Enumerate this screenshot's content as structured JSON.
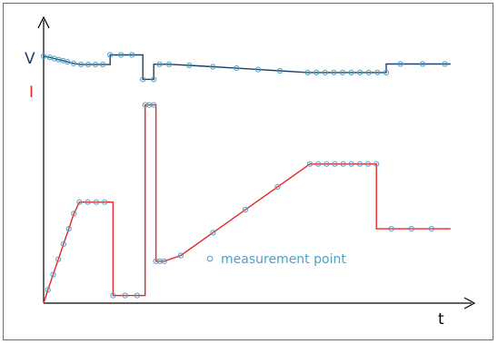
{
  "labels": {
    "v_axis": "V",
    "i_axis": "I",
    "t_axis": "t",
    "legend": "measurement point"
  },
  "colors": {
    "voltage": "#1f3f66",
    "current": "#e8262a",
    "marker": "#4aa3c8",
    "axis": "#000000",
    "v_label": "#1f3f66",
    "i_label": "#e8262a",
    "legend_text": "#4aa3c8"
  },
  "chart_data": {
    "type": "line",
    "series": [
      {
        "id": "voltage",
        "points": [
          [
            0,
            10
          ],
          [
            0.62,
            9.92
          ],
          [
            1.06,
            9.84
          ],
          [
            1.5,
            9.76
          ],
          [
            1.94,
            9.69
          ],
          [
            2.38,
            9.6
          ],
          [
            3.0,
            9.49
          ],
          [
            3.73,
            9.41
          ],
          [
            4.46,
            9.41
          ],
          [
            5.18,
            9.41
          ],
          [
            5.91,
            9.41
          ],
          [
            6.64,
            9.41
          ],
          [
            6.64,
            10.1
          ],
          [
            7.72,
            10.1
          ],
          [
            8.81,
            10.1
          ],
          [
            9.9,
            10.1
          ],
          [
            9.9,
            8.35
          ],
          [
            10.99,
            8.35
          ],
          [
            10.99,
            9.43
          ],
          [
            11.56,
            9.43
          ],
          [
            12.5,
            9.43
          ],
          [
            14.52,
            9.35
          ],
          [
            16.88,
            9.25
          ],
          [
            19.25,
            9.15
          ],
          [
            21.4,
            9.05
          ],
          [
            23.56,
            8.96
          ],
          [
            26.35,
            8.84
          ],
          [
            27.22,
            8.84
          ],
          [
            28.09,
            8.84
          ],
          [
            28.96,
            8.84
          ],
          [
            29.83,
            8.84
          ],
          [
            30.7,
            8.84
          ],
          [
            31.57,
            8.84
          ],
          [
            32.44,
            8.84
          ],
          [
            33.31,
            8.84
          ],
          [
            34.18,
            8.84
          ],
          [
            34.18,
            9.45
          ],
          [
            35.59,
            9.45
          ],
          [
            37.81,
            9.45
          ],
          [
            40.03,
            9.45
          ],
          [
            40.6,
            9.45
          ]
        ],
        "markers": [
          [
            0,
            10
          ],
          [
            0.62,
            9.92
          ],
          [
            1.06,
            9.84
          ],
          [
            1.5,
            9.76
          ],
          [
            1.94,
            9.69
          ],
          [
            2.38,
            9.6
          ],
          [
            3.0,
            9.49
          ],
          [
            3.73,
            9.41
          ],
          [
            4.46,
            9.41
          ],
          [
            5.18,
            9.41
          ],
          [
            5.91,
            9.41
          ],
          [
            6.64,
            10.1
          ],
          [
            7.72,
            10.1
          ],
          [
            8.81,
            10.1
          ],
          [
            9.9,
            8.35
          ],
          [
            10.99,
            8.35
          ],
          [
            11.56,
            9.43
          ],
          [
            12.5,
            9.43
          ],
          [
            14.52,
            9.35
          ],
          [
            16.88,
            9.25
          ],
          [
            19.25,
            9.15
          ],
          [
            21.4,
            9.05
          ],
          [
            23.56,
            8.96
          ],
          [
            26.35,
            8.84
          ],
          [
            27.22,
            8.84
          ],
          [
            28.09,
            8.84
          ],
          [
            28.96,
            8.84
          ],
          [
            29.83,
            8.84
          ],
          [
            30.7,
            8.84
          ],
          [
            31.57,
            8.84
          ],
          [
            32.44,
            8.84
          ],
          [
            33.31,
            8.84
          ],
          [
            34.18,
            8.84
          ],
          [
            35.59,
            9.45
          ],
          [
            37.81,
            9.45
          ],
          [
            40.03,
            9.45
          ]
        ]
      },
      {
        "id": "current",
        "points": [
          [
            0,
            0
          ],
          [
            0.43,
            0.35
          ],
          [
            0.95,
            0.75
          ],
          [
            1.47,
            1.15
          ],
          [
            1.99,
            1.55
          ],
          [
            2.51,
            1.95
          ],
          [
            3.02,
            2.35
          ],
          [
            3.57,
            2.65
          ],
          [
            4.41,
            2.65
          ],
          [
            5.25,
            2.65
          ],
          [
            6.09,
            2.65
          ],
          [
            6.93,
            2.65
          ],
          [
            6.93,
            0.2
          ],
          [
            8.13,
            0.2
          ],
          [
            9.33,
            0.2
          ],
          [
            10.13,
            0.2
          ],
          [
            10.13,
            5.2
          ],
          [
            10.53,
            5.2
          ],
          [
            11.0,
            5.2
          ],
          [
            11.21,
            5.2
          ],
          [
            11.21,
            1.1
          ],
          [
            11.59,
            1.1
          ],
          [
            12.03,
            1.1
          ],
          [
            13.68,
            1.25
          ],
          [
            16.9,
            1.85
          ],
          [
            20.12,
            2.45
          ],
          [
            23.34,
            3.05
          ],
          [
            26.56,
            3.65
          ],
          [
            27.39,
            3.65
          ],
          [
            28.22,
            3.65
          ],
          [
            29.05,
            3.65
          ],
          [
            29.88,
            3.65
          ],
          [
            30.71,
            3.65
          ],
          [
            31.54,
            3.65
          ],
          [
            32.37,
            3.65
          ],
          [
            33.2,
            3.65
          ],
          [
            33.2,
            1.95
          ],
          [
            34.7,
            1.95
          ],
          [
            36.7,
            1.95
          ],
          [
            38.7,
            1.95
          ],
          [
            40.6,
            1.95
          ]
        ],
        "markers": [
          [
            0.43,
            0.35
          ],
          [
            0.95,
            0.75
          ],
          [
            1.47,
            1.15
          ],
          [
            1.99,
            1.55
          ],
          [
            2.51,
            1.95
          ],
          [
            3.02,
            2.35
          ],
          [
            3.57,
            2.65
          ],
          [
            4.41,
            2.65
          ],
          [
            5.25,
            2.65
          ],
          [
            6.09,
            2.65
          ],
          [
            6.93,
            0.2
          ],
          [
            8.13,
            0.2
          ],
          [
            9.33,
            0.2
          ],
          [
            10.13,
            5.2
          ],
          [
            10.53,
            5.2
          ],
          [
            11.0,
            5.2
          ],
          [
            11.21,
            1.1
          ],
          [
            11.59,
            1.1
          ],
          [
            12.03,
            1.1
          ],
          [
            13.68,
            1.25
          ],
          [
            16.9,
            1.85
          ],
          [
            20.12,
            2.45
          ],
          [
            23.34,
            3.05
          ],
          [
            26.56,
            3.65
          ],
          [
            27.39,
            3.65
          ],
          [
            28.22,
            3.65
          ],
          [
            29.05,
            3.65
          ],
          [
            29.88,
            3.65
          ],
          [
            30.71,
            3.65
          ],
          [
            31.54,
            3.65
          ],
          [
            32.37,
            3.65
          ],
          [
            33.2,
            3.65
          ],
          [
            34.7,
            1.95
          ],
          [
            36.7,
            1.95
          ],
          [
            38.7,
            1.95
          ]
        ]
      }
    ],
    "grid": false,
    "legend": "bottom-center"
  }
}
